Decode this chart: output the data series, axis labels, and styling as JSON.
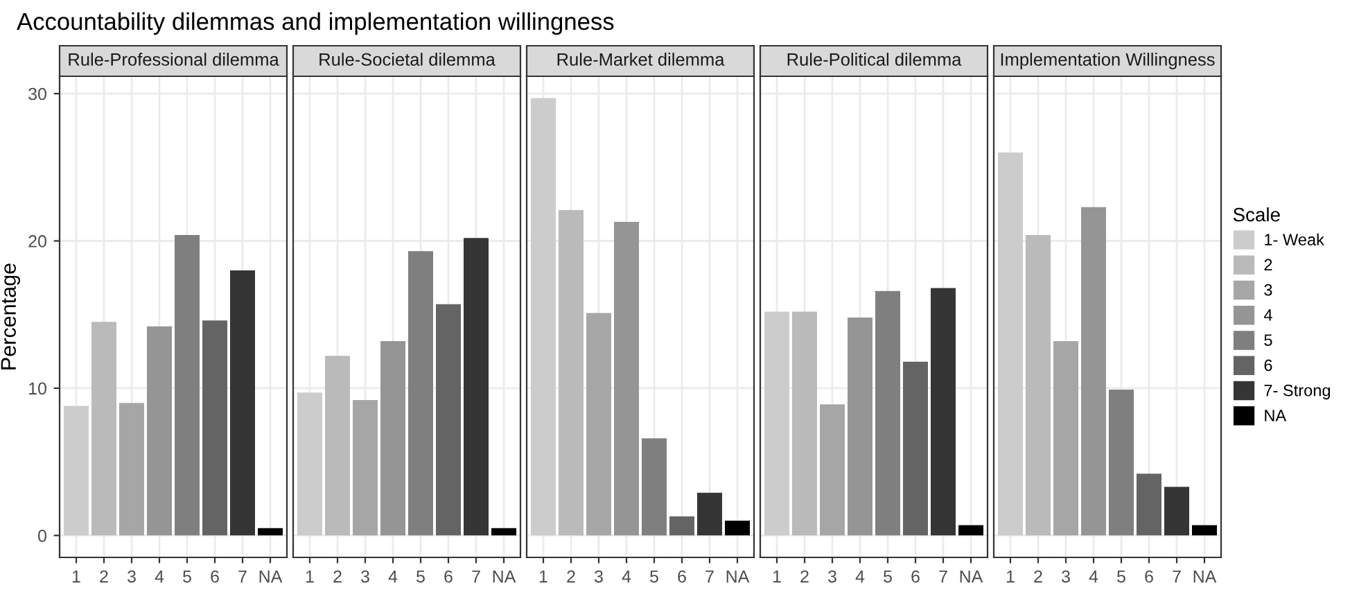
{
  "chart_data": [
    {
      "type": "bar",
      "title": "Rule-Professional dilemma",
      "ylabel": "Percentage",
      "annotations": [
        "Accountability dilemmas and implementation willingness"
      ],
      "categories": [
        "1",
        "2",
        "3",
        "4",
        "5",
        "6",
        "7",
        "NA"
      ],
      "values": [
        8.8,
        14.5,
        9.0,
        14.2,
        20.4,
        14.6,
        18.0,
        0.5
      ],
      "colors": [
        "#cccccc",
        "#bababa",
        "#a6a6a6",
        "#959595",
        "#7f7f7f",
        "#646464",
        "#353535",
        "#000000"
      ],
      "ylim": [
        -1.49,
        31.18
      ],
      "yticks": [
        0,
        10,
        20,
        30
      ],
      "grid": true
    },
    {
      "type": "bar",
      "title": "Rule-Societal dilemma",
      "categories": [
        "1",
        "2",
        "3",
        "4",
        "5",
        "6",
        "7",
        "NA"
      ],
      "values": [
        9.7,
        12.2,
        9.2,
        13.2,
        19.3,
        15.7,
        20.2,
        0.5
      ],
      "colors": [
        "#cccccc",
        "#bababa",
        "#a6a6a6",
        "#959595",
        "#7f7f7f",
        "#646464",
        "#353535",
        "#000000"
      ],
      "ylim": [
        -1.49,
        31.18
      ],
      "yticks": [
        0,
        10,
        20,
        30
      ],
      "grid": true,
      "tick_labels": "x"
    },
    {
      "type": "bar",
      "title": "Rule-Market dilemma",
      "categories": [
        "1",
        "2",
        "3",
        "4",
        "5",
        "6",
        "7",
        "NA"
      ],
      "values": [
        29.7,
        22.1,
        15.1,
        21.3,
        6.6,
        1.3,
        2.9,
        1.0
      ],
      "colors": [
        "#cccccc",
        "#bababa",
        "#a6a6a6",
        "#959595",
        "#7f7f7f",
        "#646464",
        "#353535",
        "#000000"
      ],
      "ylim": [
        -1.49,
        31.18
      ],
      "yticks": [
        0,
        10,
        20,
        30
      ],
      "grid": true,
      "tick_labels": "x"
    },
    {
      "type": "bar",
      "title": "Rule-Political dilemma",
      "categories": [
        "1",
        "2",
        "3",
        "4",
        "5",
        "6",
        "7",
        "NA"
      ],
      "values": [
        15.2,
        15.2,
        8.9,
        14.8,
        16.6,
        11.8,
        16.8,
        0.7
      ],
      "colors": [
        "#cccccc",
        "#bababa",
        "#a6a6a6",
        "#959595",
        "#7f7f7f",
        "#646464",
        "#353535",
        "#000000"
      ],
      "ylim": [
        -1.49,
        31.18
      ],
      "yticks": [
        0,
        10,
        20,
        30
      ],
      "grid": true,
      "tick_labels": "x"
    },
    {
      "type": "bar",
      "title": "Implementation Willingness",
      "legend_title": "Scale",
      "legend": "right",
      "categories": [
        "1",
        "2",
        "3",
        "4",
        "5",
        "6",
        "7",
        "NA"
      ],
      "series": [
        {
          "name": "1- Weak",
          "color": "#cccccc",
          "values": [
            26.0,
            null,
            null,
            null,
            null,
            null,
            null,
            null
          ]
        },
        {
          "name": "2",
          "color": "#bababa",
          "values": [
            null,
            20.4,
            null,
            null,
            null,
            null,
            null,
            null
          ]
        },
        {
          "name": "3",
          "color": "#a6a6a6",
          "values": [
            null,
            null,
            13.2,
            null,
            null,
            null,
            null,
            null
          ]
        },
        {
          "name": "4",
          "color": "#959595",
          "values": [
            null,
            null,
            null,
            22.3,
            null,
            null,
            null,
            null
          ]
        },
        {
          "name": "5",
          "color": "#7f7f7f",
          "values": [
            null,
            null,
            null,
            null,
            9.9,
            null,
            null,
            null
          ]
        },
        {
          "name": "6",
          "color": "#646464",
          "values": [
            null,
            null,
            null,
            null,
            null,
            4.2,
            null,
            null
          ]
        },
        {
          "name": "7- Strong",
          "color": "#353535",
          "values": [
            null,
            null,
            null,
            null,
            null,
            null,
            3.3,
            null
          ]
        },
        {
          "name": "NA",
          "color": "#000000",
          "values": [
            null,
            null,
            null,
            null,
            null,
            null,
            null,
            0.7
          ]
        }
      ],
      "ylim": [
        -1.49,
        31.18
      ],
      "yticks": [
        0,
        10,
        20,
        30
      ],
      "grid": true,
      "tick_labels": "x"
    }
  ]
}
